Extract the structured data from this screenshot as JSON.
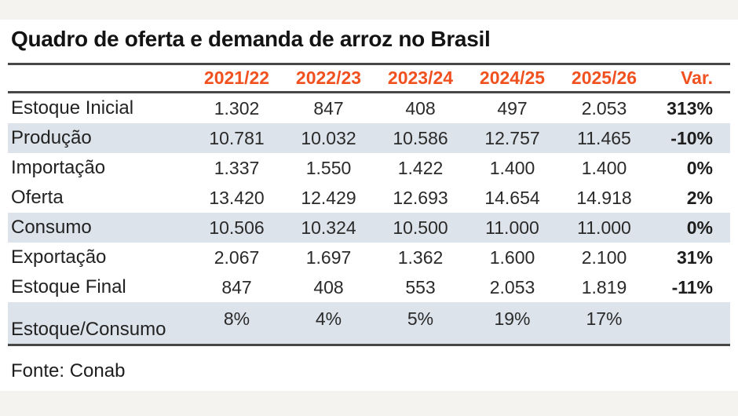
{
  "title": "Quadro de oferta e demanda de arroz no Brasil",
  "source": "Fonte: Conab",
  "colors": {
    "accent_orange": "#f0511f",
    "row_highlight": "#dde3ea",
    "rule": "#474747",
    "page_band": "#f5f3ef",
    "text": "#262626"
  },
  "table": {
    "columns": [
      "2021/22",
      "2022/23",
      "2023/24",
      "2024/25",
      "2025/26",
      "Var."
    ],
    "rows": [
      {
        "label": "Estoque Inicial",
        "values": [
          "1.302",
          "847",
          "408",
          "497",
          "2.053"
        ],
        "var": "313%",
        "highlight": false
      },
      {
        "label": "Produção",
        "values": [
          "10.781",
          "10.032",
          "10.586",
          "12.757",
          "11.465"
        ],
        "var": "-10%",
        "highlight": true
      },
      {
        "label": "Importação",
        "values": [
          "1.337",
          "1.550",
          "1.422",
          "1.400",
          "1.400"
        ],
        "var": "0%",
        "highlight": false
      },
      {
        "label": "Oferta",
        "values": [
          "13.420",
          "12.429",
          "12.693",
          "14.654",
          "14.918"
        ],
        "var": "2%",
        "highlight": false
      },
      {
        "label": "Consumo",
        "values": [
          "10.506",
          "10.324",
          "10.500",
          "11.000",
          "11.000"
        ],
        "var": "0%",
        "highlight": true
      },
      {
        "label": "Exportação",
        "values": [
          "2.067",
          "1.697",
          "1.362",
          "1.600",
          "2.100"
        ],
        "var": "31%",
        "highlight": false
      },
      {
        "label": "Estoque Final",
        "values": [
          "847",
          "408",
          "553",
          "2.053",
          "1.819"
        ],
        "var": "-11%",
        "highlight": false
      },
      {
        "label": "Estoque/Consumo",
        "values": [
          "8%",
          "4%",
          "5%",
          "19%",
          "17%"
        ],
        "var": "",
        "highlight": true
      }
    ]
  },
  "chart_data": {
    "type": "table",
    "title": "Quadro de oferta e demanda de arroz no Brasil",
    "columns": [
      "2021/22",
      "2022/23",
      "2023/24",
      "2024/25",
      "2025/26",
      "Var."
    ],
    "row_labels": [
      "Estoque Inicial",
      "Produção",
      "Importação",
      "Oferta",
      "Consumo",
      "Exportação",
      "Estoque Final",
      "Estoque/Consumo"
    ],
    "cells": [
      [
        "1.302",
        "847",
        "408",
        "497",
        "2.053",
        "313%"
      ],
      [
        "10.781",
        "10.032",
        "10.586",
        "12.757",
        "11.465",
        "-10%"
      ],
      [
        "1.337",
        "1.550",
        "1.422",
        "1.400",
        "1.400",
        "0%"
      ],
      [
        "13.420",
        "12.429",
        "12.693",
        "14.654",
        "14.918",
        "2%"
      ],
      [
        "10.506",
        "10.324",
        "10.500",
        "11.000",
        "11.000",
        "0%"
      ],
      [
        "2.067",
        "1.697",
        "1.362",
        "1.600",
        "2.100",
        "31%"
      ],
      [
        "847",
        "408",
        "553",
        "2.053",
        "1.819",
        "-11%"
      ],
      [
        "8%",
        "4%",
        "5%",
        "19%",
        "17%",
        ""
      ]
    ],
    "highlighted_rows": [
      "Produção",
      "Consumo",
      "Estoque/Consumo"
    ],
    "source": "Fonte: Conab",
    "legend_position": "none",
    "grid": false
  }
}
